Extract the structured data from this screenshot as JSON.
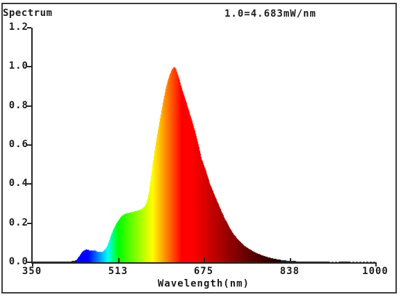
{
  "chart": {
    "title": "Spectrum",
    "scale_note": "1.0=4.683mW/nm",
    "xlabel": "Wavelength(nm)"
  },
  "chart_data": {
    "type": "area",
    "title": "Spectrum",
    "annotation": "1.0=4.683mW/nm",
    "xlabel": "Wavelength(nm)",
    "ylabel": "",
    "xlim": [
      350,
      1000
    ],
    "ylim": [
      0,
      1.2
    ],
    "x_ticks": [
      350,
      513,
      675,
      838,
      1000
    ],
    "x_tick_labels": [
      "350",
      "513",
      "675",
      "838",
      "1000"
    ],
    "y_ticks": [
      0.0,
      0.2,
      0.4,
      0.6,
      0.8,
      1.0,
      1.2
    ],
    "y_tick_labels": [
      "0.0",
      "0.2",
      "0.4",
      "0.6",
      "0.8",
      "1.0",
      "1.2"
    ],
    "grid": false,
    "legend": "none",
    "fill_style": "visible-light-spectrum-gradient",
    "axis_color": "#242424",
    "peak_wavelength_nm": 618,
    "peak_value": 1.0,
    "blue_peak_wavelength_nm": 452,
    "blue_peak_value": 0.066,
    "green_shoulder_value": 0.26,
    "points": [
      [
        350,
        0.004
      ],
      [
        358,
        0.003
      ],
      [
        366,
        0.004
      ],
      [
        374,
        0.003
      ],
      [
        382,
        0.004
      ],
      [
        390,
        0.004
      ],
      [
        398,
        0.003
      ],
      [
        406,
        0.004
      ],
      [
        414,
        0.005
      ],
      [
        422,
        0.005
      ],
      [
        428,
        0.006
      ],
      [
        433,
        0.012
      ],
      [
        438,
        0.03
      ],
      [
        443,
        0.05
      ],
      [
        448,
        0.062
      ],
      [
        452,
        0.066
      ],
      [
        456,
        0.063
      ],
      [
        460,
        0.06
      ],
      [
        464,
        0.062
      ],
      [
        468,
        0.06
      ],
      [
        472,
        0.056
      ],
      [
        476,
        0.052
      ],
      [
        480,
        0.052
      ],
      [
        484,
        0.056
      ],
      [
        488,
        0.068
      ],
      [
        492,
        0.09
      ],
      [
        496,
        0.118
      ],
      [
        500,
        0.15
      ],
      [
        504,
        0.175
      ],
      [
        508,
        0.195
      ],
      [
        512,
        0.212
      ],
      [
        516,
        0.228
      ],
      [
        520,
        0.24
      ],
      [
        525,
        0.248
      ],
      [
        530,
        0.252
      ],
      [
        535,
        0.255
      ],
      [
        540,
        0.258
      ],
      [
        545,
        0.262
      ],
      [
        550,
        0.266
      ],
      [
        555,
        0.271
      ],
      [
        559,
        0.277
      ],
      [
        562,
        0.286
      ],
      [
        565,
        0.3
      ],
      [
        568,
        0.33
      ],
      [
        571,
        0.37
      ],
      [
        574,
        0.435
      ],
      [
        577,
        0.5
      ],
      [
        580,
        0.555
      ],
      [
        583,
        0.605
      ],
      [
        586,
        0.655
      ],
      [
        589,
        0.7
      ],
      [
        592,
        0.745
      ],
      [
        595,
        0.79
      ],
      [
        598,
        0.835
      ],
      [
        601,
        0.875
      ],
      [
        604,
        0.91
      ],
      [
        607,
        0.94
      ],
      [
        610,
        0.963
      ],
      [
        613,
        0.982
      ],
      [
        616,
        0.995
      ],
      [
        618,
        1.0
      ],
      [
        620,
        0.997
      ],
      [
        622,
        0.985
      ],
      [
        625,
        0.962
      ],
      [
        628,
        0.935
      ],
      [
        631,
        0.905
      ],
      [
        634,
        0.878
      ],
      [
        638,
        0.845
      ],
      [
        642,
        0.81
      ],
      [
        646,
        0.775
      ],
      [
        650,
        0.74
      ],
      [
        654,
        0.705
      ],
      [
        658,
        0.667
      ],
      [
        662,
        0.625
      ],
      [
        666,
        0.578
      ],
      [
        670,
        0.53
      ],
      [
        674,
        0.5
      ],
      [
        678,
        0.47
      ],
      [
        682,
        0.435
      ],
      [
        686,
        0.4
      ],
      [
        690,
        0.375
      ],
      [
        695,
        0.34
      ],
      [
        700,
        0.31
      ],
      [
        706,
        0.272
      ],
      [
        712,
        0.235
      ],
      [
        718,
        0.203
      ],
      [
        724,
        0.172
      ],
      [
        730,
        0.147
      ],
      [
        736,
        0.126
      ],
      [
        742,
        0.108
      ],
      [
        748,
        0.092
      ],
      [
        754,
        0.079
      ],
      [
        760,
        0.068
      ],
      [
        768,
        0.056
      ],
      [
        776,
        0.045
      ],
      [
        784,
        0.036
      ],
      [
        792,
        0.029
      ],
      [
        800,
        0.023
      ],
      [
        810,
        0.017
      ],
      [
        820,
        0.012
      ],
      [
        830,
        0.009
      ],
      [
        840,
        0.007
      ],
      [
        850,
        0.005
      ],
      [
        862,
        0.004
      ],
      [
        875,
        0.003
      ],
      [
        890,
        0.003
      ],
      [
        905,
        0.003
      ],
      [
        920,
        0.002
      ],
      [
        940,
        0.003
      ],
      [
        960,
        0.002
      ],
      [
        980,
        0.002
      ],
      [
        1000,
        0.002
      ]
    ]
  }
}
